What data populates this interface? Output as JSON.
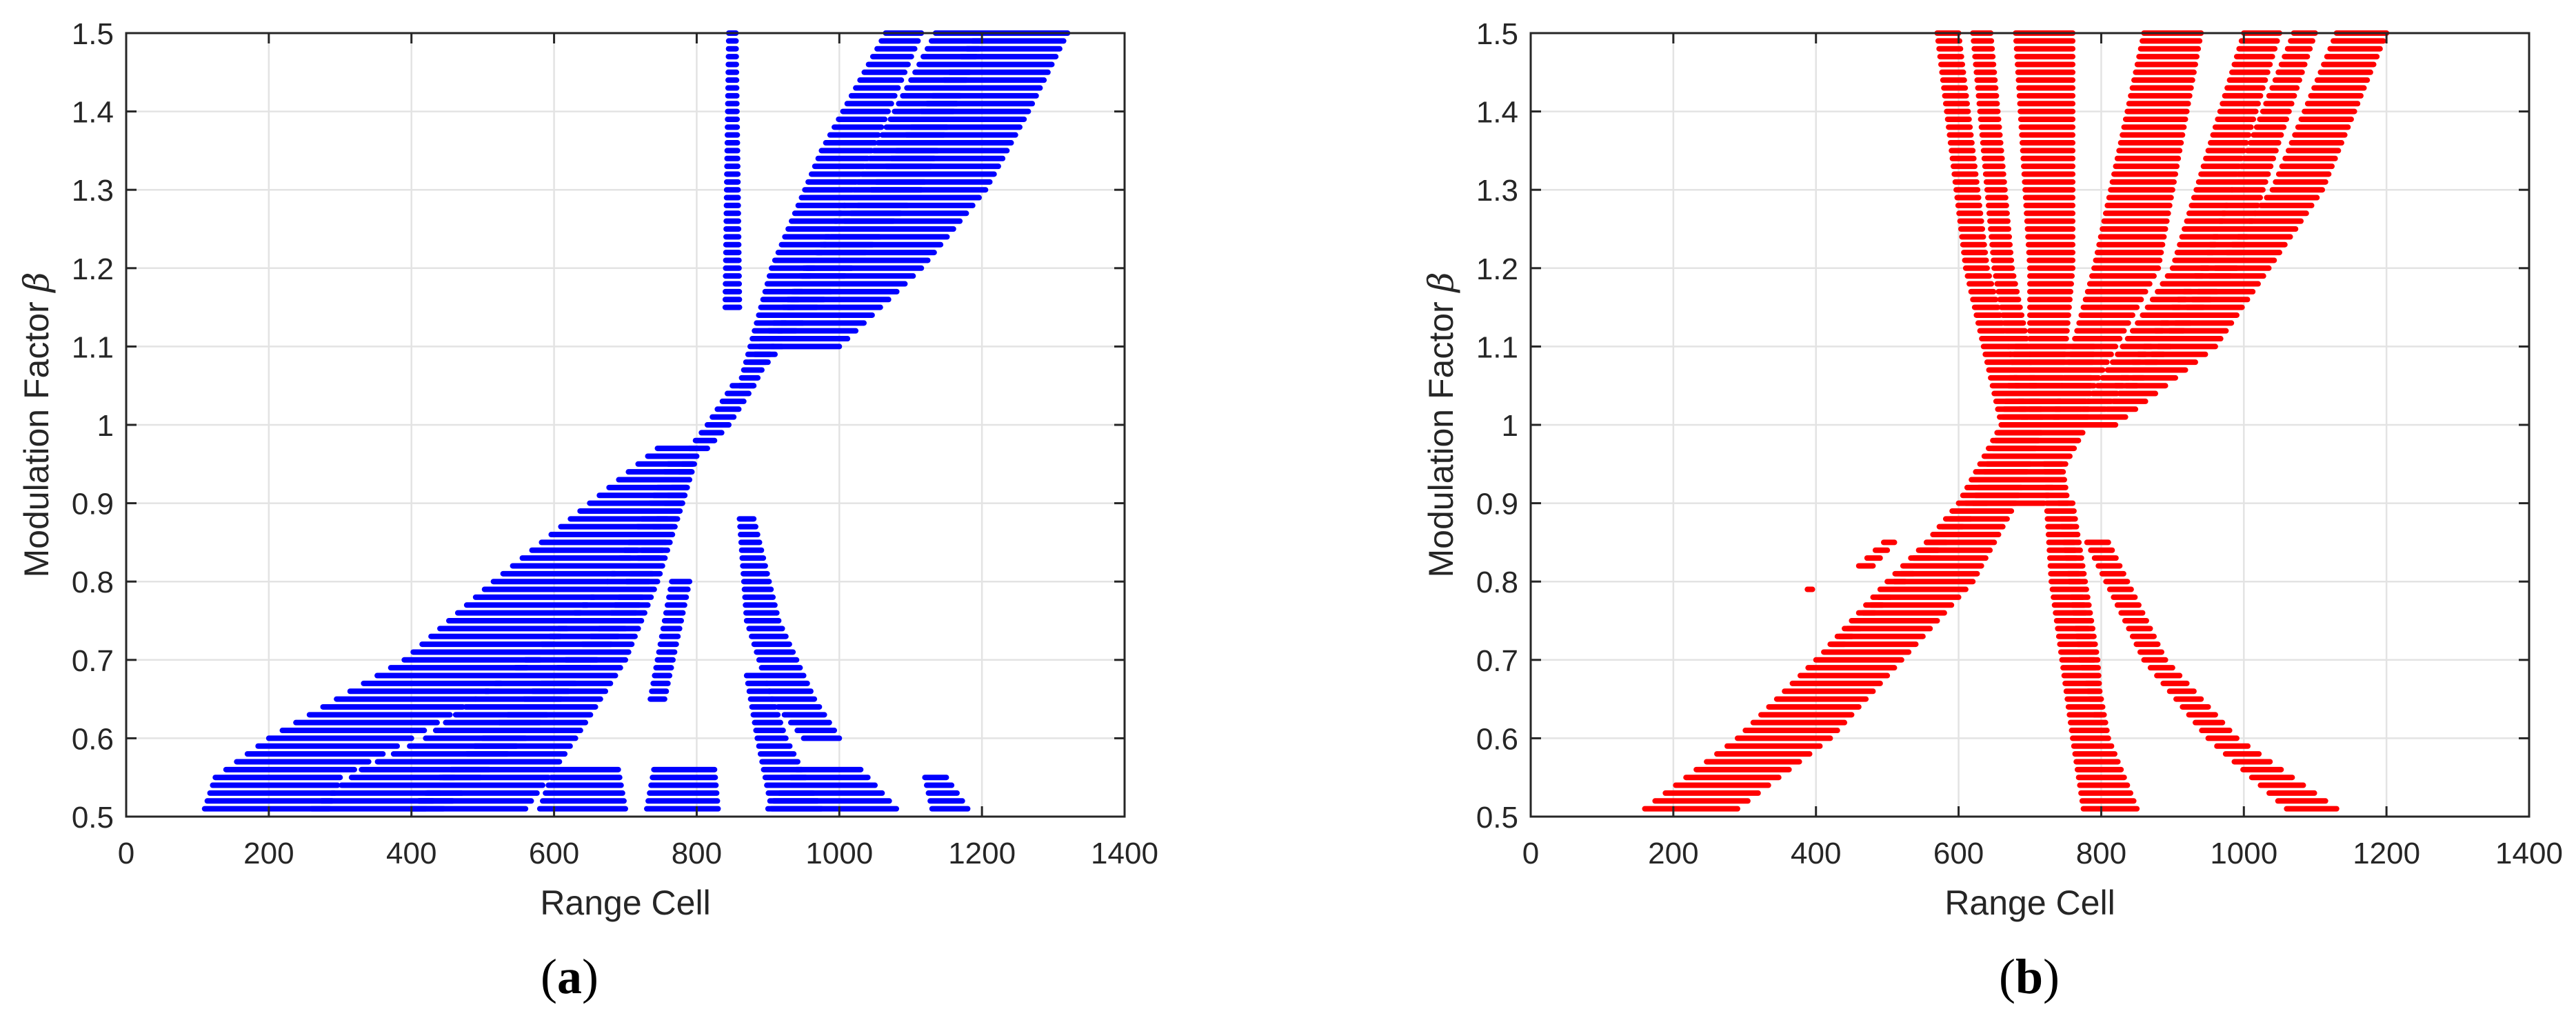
{
  "figure": {
    "panels": [
      {
        "id": "a",
        "caption_open": "(",
        "caption_letter": "a",
        "caption_close": ")"
      },
      {
        "id": "b",
        "caption_open": "(",
        "caption_letter": "b",
        "caption_close": ")"
      }
    ]
  },
  "chart_data": [
    {
      "type": "scatter",
      "panel": "(a)",
      "title": "",
      "xlabel": "Range Cell",
      "ylabel": "Modulation Factor",
      "ylabel_symbol": "β",
      "xlim": [
        0,
        1400
      ],
      "ylim": [
        0.5,
        1.5
      ],
      "xticks": [
        0,
        200,
        400,
        600,
        800,
        1000,
        1200,
        1400
      ],
      "yticks": [
        0.5,
        0.6,
        0.7,
        0.8,
        0.9,
        1,
        1.1,
        1.2,
        1.3,
        1.4,
        1.5
      ],
      "ytick_labels": [
        "0.5",
        "0.6",
        "0.7",
        "0.8",
        "0.9",
        "1",
        "1.1",
        "1.2",
        "1.3",
        "1.4",
        "1.5"
      ],
      "grid": true,
      "marker_color": "#0000FF",
      "beta_step": 0.01,
      "bands": [
        {
          "name": "lower-diagonal-1",
          "pts": [
            [
              0.51,
              110,
              285
            ],
            [
              0.55,
              125,
              300
            ],
            [
              0.6,
              200,
              400
            ],
            [
              0.7,
              390,
              580
            ],
            [
              0.8,
              515,
              675
            ],
            [
              0.9,
              650,
              780
            ],
            [
              0.97,
              745,
              800
            ]
          ]
        },
        {
          "name": "lower-diagonal-2",
          "pts": [
            [
              0.51,
              260,
              560
            ],
            [
              0.56,
              330,
              600
            ],
            [
              0.6,
              420,
              630
            ],
            [
              0.7,
              560,
              700
            ],
            [
              0.8,
              675,
              745
            ],
            [
              0.9,
              735,
              780
            ],
            [
              0.95,
              760,
              795
            ]
          ]
        },
        {
          "name": "lower-diagonal-3",
          "pts": [
            [
              0.51,
              400,
              445
            ],
            [
              0.6,
              500,
              560
            ],
            [
              0.75,
              675,
              710
            ],
            [
              0.9,
              755,
              780
            ],
            [
              0.96,
              785,
              800
            ]
          ]
        },
        {
          "name": "crossing",
          "pts": [
            [
              0.97,
              790,
              815
            ],
            [
              1.0,
              815,
              845
            ],
            [
              1.05,
              850,
              880
            ]
          ]
        },
        {
          "name": "upper-fan-left",
          "pts": [
            [
              1.05,
              860,
              880
            ],
            [
              1.2,
              905,
              965
            ],
            [
              1.35,
              975,
              1045
            ],
            [
              1.5,
              1065,
              1115
            ]
          ]
        },
        {
          "name": "upper-fan-mid",
          "pts": [
            [
              1.08,
              875,
              900
            ],
            [
              1.3,
              1020,
              1115
            ],
            [
              1.5,
              1135,
              1205
            ]
          ]
        },
        {
          "name": "upper-fan-thick",
          "pts": [
            [
              1.1,
              905,
              1000
            ],
            [
              1.2,
              950,
              1115
            ],
            [
              1.3,
              1045,
              1205
            ],
            [
              1.4,
              1115,
              1265
            ],
            [
              1.5,
              1195,
              1320
            ]
          ]
        },
        {
          "name": "vertical-spike",
          "pts": [
            [
              1.15,
              840,
              860
            ],
            [
              1.3,
              842,
              858
            ],
            [
              1.5,
              845,
              855
            ]
          ]
        },
        {
          "name": "lower-right-diagonal",
          "pts": [
            [
              0.88,
              860,
              880
            ],
            [
              0.75,
              870,
              915
            ],
            [
              0.65,
              905,
              965
            ],
            [
              0.6,
              950,
              1000
            ]
          ]
        },
        {
          "name": "lower-right-thin",
          "pts": [
            [
              0.8,
              765,
              790
            ],
            [
              0.65,
              735,
              755
            ]
          ]
        },
        {
          "name": "lower-right-inner",
          "pts": [
            [
              0.68,
              870,
              895
            ],
            [
              0.6,
              885,
              925
            ],
            [
              0.51,
              905,
              975
            ]
          ]
        },
        {
          "name": "bottom-cluster-600",
          "pts": [
            [
              0.51,
              580,
              700
            ],
            [
              0.56,
              600,
              690
            ]
          ]
        },
        {
          "name": "bottom-cluster-780",
          "pts": [
            [
              0.51,
              730,
              830
            ],
            [
              0.56,
              740,
              825
            ]
          ]
        },
        {
          "name": "bottom-cluster-1000",
          "pts": [
            [
              0.51,
              900,
              1080
            ],
            [
              0.56,
              940,
              1030
            ]
          ]
        },
        {
          "name": "bottom-cluster-1150",
          "pts": [
            [
              0.51,
              1130,
              1180
            ],
            [
              0.55,
              1120,
              1150
            ]
          ]
        },
        {
          "name": "bottom-cluster-430",
          "pts": [
            [
              0.51,
              400,
              420
            ],
            [
              0.55,
              440,
              460
            ]
          ]
        }
      ]
    },
    {
      "type": "scatter",
      "panel": "(b)",
      "title": "",
      "xlabel": "Range Cell",
      "ylabel": "Modulation Factor",
      "ylabel_symbol": "β",
      "xlim": [
        0,
        1400
      ],
      "ylim": [
        0.5,
        1.5
      ],
      "xticks": [
        0,
        200,
        400,
        600,
        800,
        1000,
        1200,
        1400
      ],
      "yticks": [
        0.5,
        0.6,
        0.7,
        0.8,
        0.9,
        1,
        1.1,
        1.2,
        1.3,
        1.4,
        1.5
      ],
      "ytick_labels": [
        "0.5",
        "0.6",
        "0.7",
        "0.8",
        "0.9",
        "1",
        "1.1",
        "1.2",
        "1.3",
        "1.4",
        "1.5"
      ],
      "grid": true,
      "marker_color": "#FF0000",
      "beta_step": 0.01,
      "bands": [
        {
          "name": "left-broad",
          "pts": [
            [
              0.51,
              160,
              290
            ],
            [
              0.6,
              290,
              420
            ],
            [
              0.7,
              400,
              520
            ],
            [
              0.8,
              510,
              620
            ],
            [
              0.9,
              600,
              680
            ],
            [
              1.0,
              660,
              720
            ]
          ]
        },
        {
          "name": "left-thin",
          "pts": [
            [
              0.72,
              420,
              440
            ],
            [
              0.8,
              500,
              525
            ],
            [
              0.9,
              610,
              640
            ]
          ]
        },
        {
          "name": "left-stray",
          "pts": [
            [
              0.82,
              460,
              480
            ],
            [
              0.85,
              495,
              510
            ]
          ]
        },
        {
          "name": "center-crossing",
          "pts": [
            [
              0.9,
              620,
              720
            ],
            [
              1.0,
              660,
              780
            ],
            [
              1.1,
              680,
              790
            ]
          ]
        },
        {
          "name": "upper-vertical-1",
          "pts": [
            [
              1.5,
              570,
              600
            ],
            [
              1.2,
              610,
              640
            ],
            [
              1.0,
              660,
              700
            ]
          ]
        },
        {
          "name": "upper-vertical-2",
          "pts": [
            [
              1.5,
              620,
              645
            ],
            [
              1.2,
              650,
              675
            ],
            [
              1.0,
              690,
              720
            ]
          ]
        },
        {
          "name": "upper-vertical-thick",
          "pts": [
            [
              1.5,
              680,
              760
            ],
            [
              1.2,
              700,
              760
            ],
            [
              1.0,
              700,
              740
            ]
          ]
        },
        {
          "name": "upper-right-thick",
          "pts": [
            [
              1.5,
              860,
              940
            ],
            [
              1.2,
              790,
              880
            ],
            [
              1.0,
              730,
              760
            ]
          ]
        },
        {
          "name": "right-fan-1",
          "pts": [
            [
              1.5,
              1000,
              1050
            ],
            [
              1.2,
              900,
              950
            ],
            [
              1.0,
              760,
              790
            ]
          ]
        },
        {
          "name": "right-fan-2",
          "pts": [
            [
              1.5,
              1070,
              1100
            ],
            [
              1.2,
              940,
              990
            ],
            [
              1.05,
              820,
              850
            ]
          ]
        },
        {
          "name": "right-fan-3",
          "pts": [
            [
              1.5,
              1130,
              1200
            ],
            [
              1.3,
              1040,
              1110
            ],
            [
              1.1,
              880,
              960
            ],
            [
              1.0,
              790,
              820
            ]
          ]
        },
        {
          "name": "down-thick",
          "pts": [
            [
              0.95,
              720,
              745
            ],
            [
              0.8,
              730,
              770
            ],
            [
              0.7,
              745,
              790
            ],
            [
              0.6,
              760,
              810
            ],
            [
              0.51,
              775,
              850
            ]
          ]
        },
        {
          "name": "down-thin",
          "pts": [
            [
              0.9,
              740,
              760
            ],
            [
              0.7,
              770,
              795
            ],
            [
              0.63,
              790,
              800
            ]
          ]
        },
        {
          "name": "down-right",
          "pts": [
            [
              0.85,
              780,
              810
            ],
            [
              0.7,
              860,
              890
            ],
            [
              0.6,
              950,
              990
            ],
            [
              0.51,
              1060,
              1130
            ]
          ]
        },
        {
          "name": "stray-point",
          "pts": [
            [
              0.79,
              388,
              395
            ],
            [
              0.79,
              388,
              395
            ]
          ]
        }
      ]
    }
  ]
}
